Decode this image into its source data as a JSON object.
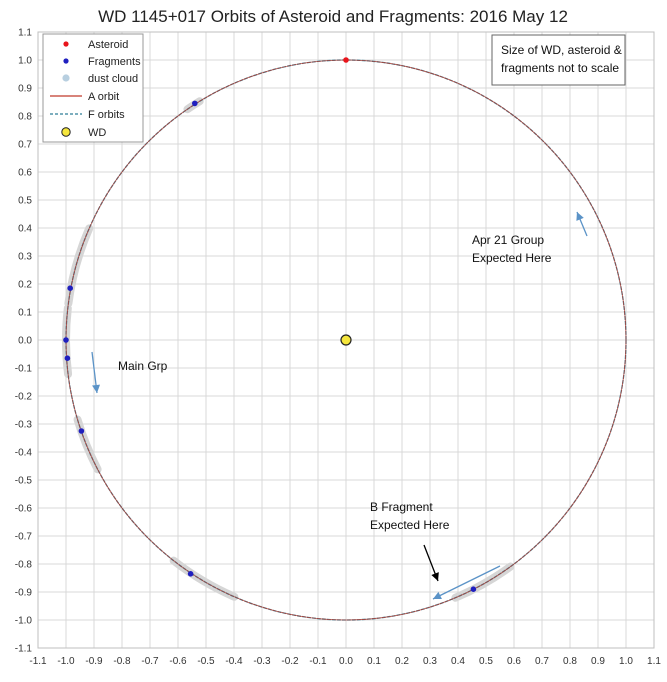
{
  "chart_data": {
    "type": "scatter",
    "title": "WD 1145+017 Orbits of Asteroid and Fragments: 2016 May 12",
    "xlim": [
      -1.1,
      1.1
    ],
    "ylim": [
      -1.1,
      1.1
    ],
    "xticks": [
      "-1.1",
      "-1.0",
      "-0.9",
      "-0.8",
      "-0.7",
      "-0.6",
      "-0.5",
      "-0.4",
      "-0.3",
      "-0.2",
      "-0.1",
      "0.0",
      "0.1",
      "0.2",
      "0.3",
      "0.4",
      "0.5",
      "0.6",
      "0.7",
      "0.8",
      "0.9",
      "1.0",
      "1.1"
    ],
    "yticks": [
      "1.1",
      "1.0",
      "0.9",
      "0.8",
      "0.7",
      "0.6",
      "0.5",
      "0.4",
      "0.3",
      "0.2",
      "0.1",
      "0.0",
      "-0.1",
      "-0.2",
      "-0.3",
      "-0.4",
      "-0.5",
      "-0.6",
      "-0.7",
      "-0.8",
      "-0.9",
      "-1.0",
      "-1.1"
    ],
    "grid": true,
    "legend_position": "top-left",
    "legend": [
      {
        "label": "Asteroid",
        "kind": "dot",
        "color": "#e8141b"
      },
      {
        "label": "Fragments",
        "kind": "dot",
        "color": "#1f1fbf"
      },
      {
        "label": "dust cloud",
        "kind": "dot",
        "color": "#b8cfe0"
      },
      {
        "label": "A orbit",
        "kind": "line",
        "color": "#c0392b"
      },
      {
        "label": "F orbits",
        "kind": "dashed",
        "color": "#2e7d96"
      },
      {
        "label": "WD",
        "kind": "dot",
        "color": "#f5e63c"
      }
    ],
    "orbit_radius": 1.0,
    "asteroid": [
      {
        "x": 0.0,
        "y": 1.0
      }
    ],
    "wd": [
      {
        "x": 0.0,
        "y": 0.0
      }
    ],
    "fragments": [
      {
        "x": -0.54,
        "y": 0.845
      },
      {
        "x": -0.985,
        "y": 0.185
      },
      {
        "x": -1.0,
        "y": 0.0
      },
      {
        "x": -0.995,
        "y": -0.065
      },
      {
        "x": -0.945,
        "y": -0.325
      },
      {
        "x": -0.555,
        "y": -0.835
      },
      {
        "x": 0.455,
        "y": -0.89
      }
    ],
    "dust_arcs_deg": [
      {
        "start": 121.5,
        "end": 124.5
      },
      {
        "start": 156.5,
        "end": 172.5
      },
      {
        "start": 173.5,
        "end": 187.0
      },
      {
        "start": 196.5,
        "end": 207.5
      },
      {
        "start": 232.0,
        "end": 246.5
      },
      {
        "start": 293.0,
        "end": 306.0
      }
    ],
    "annotations": [
      {
        "text": "Size of WD, asteroid &",
        "line2": "fragments not to scale"
      },
      {
        "text": "Apr 21 Group",
        "line2": "Expected Here"
      },
      {
        "text": "Main Grp"
      },
      {
        "text": "B Fragment",
        "line2": "Expected Here"
      }
    ],
    "colors": {
      "grid": "#d9d9d9",
      "a_orbit": "#c0392b",
      "f_orbit": "#2e7d96",
      "dust": "#d6d6d6",
      "arrow_blue": "#5b93c7",
      "arrow_black": "#000000"
    }
  }
}
